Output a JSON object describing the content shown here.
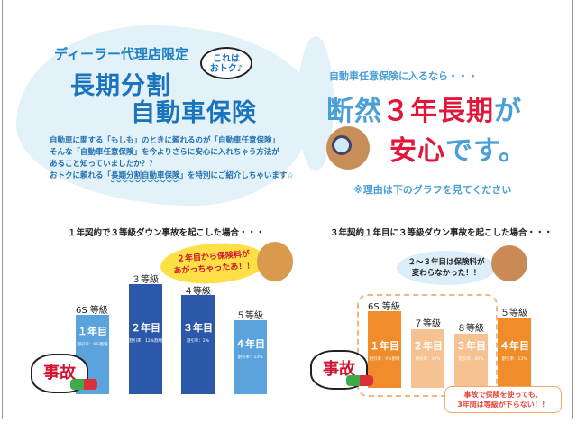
{
  "header": {
    "dealer_limited": "ディーラー代理店限定",
    "title_line1": "長期分割",
    "title_line2": "自動車保険",
    "bubble_line1": "これは",
    "bubble_line2": "おトク♪",
    "intro": [
      "自動車に関する「もしも」のときに頼れるのが「自動車任意保険」",
      "そんな「自動車任意保険」を今よりさらに安心に入れちゃう方法が",
      "あること知っていましたか？？"
    ],
    "intro_last_pre": "おトクに頼れる「",
    "intro_last_highlight": "長期分割自動車保険",
    "intro_last_post": "」を特別にご紹介しちゃいます☆"
  },
  "hero": {
    "subtitle": "自動車任意保険に入るなら・・・",
    "line1_a": "断然",
    "line1_b": "３年長期",
    "line1_c": "が",
    "line2_a": "安心",
    "line2_b": "です。",
    "note": "※理由は下のグラフを見てください"
  },
  "colors": {
    "blue": "#4a9fd6",
    "red": "#e0173a",
    "light_blue_bar": "#5ba3dc",
    "dark_blue_bar": "#2b58a8",
    "orange_bar": "#f08c2a",
    "light_orange_bar": "#f6c291"
  },
  "left_panel": {
    "title": "１年契約で３等級ダウン事故を起こした場合・・・",
    "speech": [
      "２年目から保険料が",
      "あがっちゃったあ！！"
    ],
    "accident": "事故",
    "bars": [
      {
        "grade": "6S 等級",
        "year": "１年目",
        "discount": "割引率：6%割増"
      },
      {
        "grade": "３等級",
        "year": "２年目",
        "discount": "割引率：12%割増"
      },
      {
        "grade": "４等級",
        "year": "３年目",
        "discount": "割引率：2%"
      },
      {
        "grade": "５等級",
        "year": "４年目",
        "discount": "割引率：13%"
      }
    ]
  },
  "right_panel": {
    "title": "３年契約１年目に３等級ダウン事故を起こした場合・・・",
    "speech": [
      "２～３年目は保険料が",
      "変わらなかった！！"
    ],
    "accident": "事故",
    "bars": [
      {
        "grade": "6S 等級",
        "year": "１年目",
        "discount": "割引率：6%割増"
      },
      {
        "grade": "７等級",
        "year": "２年目",
        "discount": "割引率：30%"
      },
      {
        "grade": "８等級",
        "year": "３年目",
        "discount": "割引率：40%"
      },
      {
        "grade": "５等級",
        "year": "４年目",
        "discount": "割引率：13%"
      }
    ],
    "note": [
      "事故で保険を使っても、",
      "3年間は等級が下らない！！"
    ]
  }
}
